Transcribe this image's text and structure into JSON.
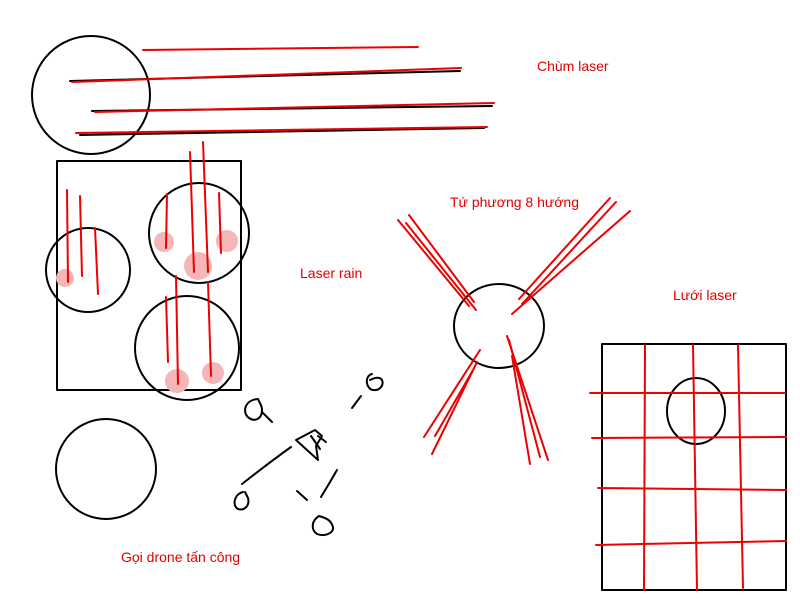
{
  "labels": {
    "chum_laser": "Chùm laser",
    "laser_rain": "Laser rain",
    "tu_phuong": "Tứ phương 8 hướng",
    "luoi_laser": "Lưới laser",
    "goi_drone": "Gọi drone tấn công"
  },
  "colors": {
    "ink": "#000000",
    "laser": "#ee0000",
    "impact": "#f4b6b6",
    "background": "#ffffff"
  }
}
